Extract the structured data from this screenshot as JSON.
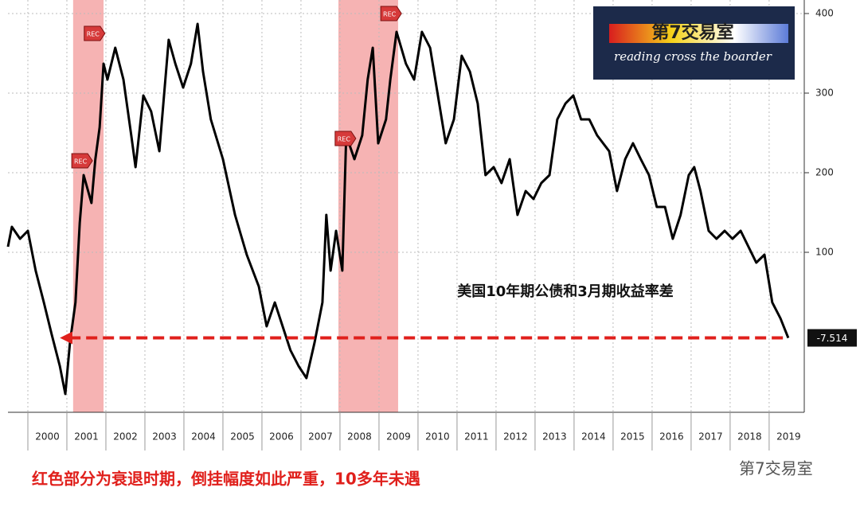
{
  "chart_data": {
    "type": "line",
    "x": [
      1999.49,
      1999.59,
      1999.8,
      2000.0,
      2000.2,
      2000.41,
      2000.61,
      2000.82,
      2000.96,
      2001.08,
      2001.22,
      2001.33,
      2001.43,
      2001.63,
      2001.73,
      2001.84,
      2001.94,
      2002.04,
      2002.24,
      2002.45,
      2002.65,
      2002.76,
      2002.96,
      2003.16,
      2003.37,
      2003.61,
      2003.78,
      2003.98,
      2004.18,
      2004.35,
      2004.49,
      2004.69,
      2005.0,
      2005.31,
      2005.61,
      2005.92,
      2006.12,
      2006.33,
      2006.53,
      2006.73,
      2006.94,
      2007.14,
      2007.35,
      2007.55,
      2007.65,
      2007.76,
      2007.9,
      2008.06,
      2008.16,
      2008.37,
      2008.57,
      2008.71,
      2008.84,
      2008.98,
      2009.18,
      2009.29,
      2009.45,
      2009.69,
      2009.9,
      2010.1,
      2010.31,
      2010.51,
      2010.71,
      2010.92,
      2011.12,
      2011.33,
      2011.53,
      2011.73,
      2011.94,
      2012.14,
      2012.35,
      2012.55,
      2012.76,
      2012.96,
      2013.16,
      2013.37,
      2013.57,
      2013.78,
      2013.98,
      2014.18,
      2014.39,
      2014.59,
      2014.9,
      2015.1,
      2015.31,
      2015.51,
      2015.71,
      2015.92,
      2016.12,
      2016.33,
      2016.53,
      2016.73,
      2016.94,
      2017.08,
      2017.24,
      2017.45,
      2017.65,
      2017.86,
      2018.06,
      2018.27,
      2018.47,
      2018.67,
      2018.88,
      2019.08,
      2019.29,
      2019.49
    ],
    "series": [
      {
        "color": "#000000",
        "values": [
          107,
          132,
          117,
          127,
          77,
          37,
          -3,
          -43,
          -78,
          -13,
          37,
          137,
          197,
          162,
          217,
          257,
          337,
          317,
          357,
          317,
          247,
          207,
          297,
          277,
          227,
          367,
          337,
          307,
          337,
          387,
          327,
          267,
          217,
          147,
          97,
          57,
          7,
          37,
          7,
          -23,
          -43,
          -58,
          -13,
          37,
          147,
          77,
          127,
          77,
          247,
          217,
          247,
          317,
          357,
          237,
          267,
          317,
          377,
          337,
          317,
          377,
          357,
          297,
          237,
          267,
          347,
          327,
          287,
          197,
          207,
          187,
          217,
          147,
          177,
          167,
          187,
          197,
          267,
          287,
          297,
          267,
          267,
          247,
          227,
          177,
          217,
          237,
          217,
          197,
          157,
          157,
          117,
          147,
          197,
          207,
          177,
          127,
          117,
          127,
          117,
          127,
          107,
          87,
          97,
          37,
          17,
          -7.514
        ]
      }
    ],
    "xlim": [
      1999.49,
      2019.9
    ],
    "ylim": [
      -101,
      417
    ],
    "yticks": [
      100,
      200,
      300,
      400
    ],
    "xticks": [
      {
        "value": 2000.5,
        "label": "2000"
      },
      {
        "value": 2001.5,
        "label": "2001"
      },
      {
        "value": 2002.5,
        "label": "2002"
      },
      {
        "value": 2003.5,
        "label": "2003"
      },
      {
        "value": 2004.5,
        "label": "2004"
      },
      {
        "value": 2005.5,
        "label": "2005"
      },
      {
        "value": 2006.5,
        "label": "2006"
      },
      {
        "value": 2007.5,
        "label": "2007"
      },
      {
        "value": 2008.5,
        "label": "2008"
      },
      {
        "value": 2009.5,
        "label": "2009"
      },
      {
        "value": 2010.5,
        "label": "2010"
      },
      {
        "value": 2011.5,
        "label": "2011"
      },
      {
        "value": 2012.5,
        "label": "2012"
      },
      {
        "value": 2013.5,
        "label": "2013"
      },
      {
        "value": 2014.5,
        "label": "2014"
      },
      {
        "value": 2015.5,
        "label": "2015"
      },
      {
        "value": 2016.5,
        "label": "2016"
      },
      {
        "value": 2017.5,
        "label": "2017"
      },
      {
        "value": 2018.5,
        "label": "2018"
      },
      {
        "value": 2019.5,
        "label": "2019"
      }
    ],
    "grid": true,
    "recessions": [
      [
        2001.16,
        2001.94
      ],
      [
        2007.96,
        2009.49
      ]
    ],
    "recession_color": "#f4a6a6",
    "rec_markers": [
      {
        "x": 2001.69,
        "y": 375,
        "label": "REC"
      },
      {
        "x": 2001.37,
        "y": 215,
        "label": "REC"
      },
      {
        "x": 2008.12,
        "y": 243,
        "label": "REC"
      },
      {
        "x": 2009.29,
        "y": 400,
        "label": "REC"
      }
    ],
    "annotation": "美国10年期公债和3月期收益率差",
    "caption": "红色部分为衰退时期，倒挂幅度如此严重，10多年未遇",
    "arrow_color": "#e0201c"
  },
  "logo": {
    "title": "第7交易室",
    "subtitle": "reading cross the boarder"
  },
  "watermark": "第7交易室"
}
